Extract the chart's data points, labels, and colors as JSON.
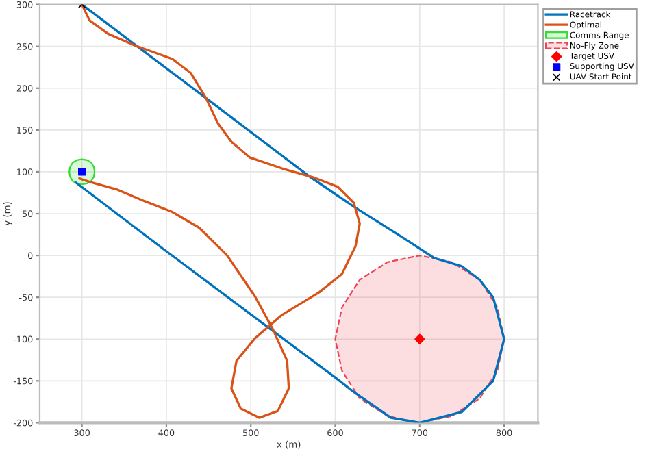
{
  "chart_data": {
    "type": "line",
    "xlabel": "x (m)",
    "ylabel": "y (m)",
    "xlim": [
      250,
      840
    ],
    "ylim": [
      -200,
      300
    ],
    "xticks": [
      300,
      400,
      500,
      600,
      700,
      800
    ],
    "yticks": [
      -200,
      -150,
      -100,
      -50,
      0,
      50,
      100,
      150,
      200,
      250,
      300
    ],
    "grid": true,
    "legend": "top right",
    "series": [
      {
        "name": "Racetrack",
        "color": "#0072bd",
        "x": [
          300,
          447,
          570,
          624,
          679,
          717,
          750,
          771,
          787,
          800,
          787,
          750,
          700,
          666,
          623,
          600,
          400,
          293
        ],
        "values": [
          300,
          188,
          94,
          57,
          22,
          -3,
          -13,
          -29,
          -50,
          -100,
          -150,
          -187,
          -200,
          -194,
          -164,
          -146,
          5,
          87
        ]
      },
      {
        "name": "Optimal",
        "color": "#d95319",
        "x": [
          300,
          309,
          331,
          363,
          407,
          429,
          447,
          461,
          477,
          499,
          537,
          575,
          603,
          622,
          629,
          624,
          608,
          581,
          537,
          505,
          483,
          477,
          488,
          510,
          532,
          545,
          543,
          526,
          505,
          472,
          439,
          407,
          374,
          341,
          309,
          297
        ],
        "values": [
          300,
          281,
          265,
          251,
          235,
          218,
          188,
          158,
          136,
          117,
          104,
          93,
          82,
          63,
          38,
          11,
          -22,
          -44,
          -71,
          -99,
          -126,
          -159,
          -183,
          -194,
          -186,
          -159,
          -126,
          -88,
          -49,
          0,
          33,
          52,
          65,
          79,
          88,
          92
        ]
      },
      {
        "name": "Comms Range",
        "type": "area",
        "color": "#33dd33",
        "x": [
          315,
          314,
          311,
          306,
          300,
          294,
          289,
          286,
          285,
          286,
          289,
          294,
          300,
          306,
          311,
          314
        ],
        "values": [
          100,
          106,
          111,
          114,
          115,
          114,
          111,
          106,
          100,
          94,
          89,
          86,
          85,
          86,
          89,
          94
        ]
      },
      {
        "name": "No-Fly Zone",
        "type": "area",
        "color": "#ee4455",
        "line_style": "dashed",
        "x": [
          800,
          792,
          771,
          738,
          700,
          662,
          629,
          608,
          600,
          608,
          629,
          662,
          700,
          738,
          771,
          792
        ],
        "values": [
          -100,
          -62,
          -29,
          -8,
          0,
          -8,
          -29,
          -62,
          -100,
          -138,
          -171,
          -192,
          -200,
          -192,
          -171,
          -138
        ]
      },
      {
        "name": "Target USV",
        "type": "scatter",
        "color": "#ff0000",
        "marker": "diamond",
        "x": [
          700
        ],
        "values": [
          -100
        ]
      },
      {
        "name": "Supporting USV",
        "type": "scatter",
        "color": "#0000ff",
        "marker": "square",
        "x": [
          300
        ],
        "values": [
          100
        ]
      },
      {
        "name": "UAV Start Point",
        "type": "scatter",
        "color": "#000000",
        "marker": "cross",
        "x": [
          300
        ],
        "values": [
          300
        ]
      }
    ]
  }
}
